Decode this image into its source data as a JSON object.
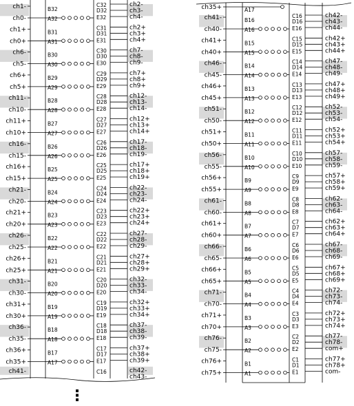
{
  "left_block": {
    "pins": [
      {
        "b": "B32",
        "a": "A32",
        "c": "C32",
        "d": "D32",
        "e": "E32",
        "out": [
          "ch2-",
          "ch3-",
          "ch4-"
        ],
        "in": [
          "ch1-",
          "ch0-"
        ],
        "shaded": true
      },
      {
        "b": "B31",
        "a": "A31",
        "c": "C31",
        "d": "D31",
        "e": "E31",
        "out": [
          "ch2+",
          "ch3+",
          "ch4+"
        ],
        "in": [
          "ch1+",
          "ch0+"
        ],
        "shaded": false
      },
      {
        "b": "B30",
        "a": "A30",
        "c": "C30",
        "d": "D30",
        "e": "E30",
        "out": [
          "ch7-",
          "ch8-",
          "ch9-"
        ],
        "in": [
          "ch6-",
          "ch5-"
        ],
        "shaded": true
      },
      {
        "b": "B29",
        "a": "A29",
        "c": "C29",
        "d": "D29",
        "e": "E29",
        "out": [
          "ch7+",
          "ch8+",
          "ch9+"
        ],
        "in": [
          "ch6+",
          "ch5+"
        ],
        "shaded": false
      },
      {
        "b": "B28",
        "a": "A28",
        "c": "C28",
        "d": "D28",
        "e": "E28",
        "out": [
          "ch12-",
          "ch13-",
          "ch14-"
        ],
        "in": [
          "ch11-",
          "ch10-"
        ],
        "shaded": true
      },
      {
        "b": "B27",
        "a": "A27",
        "c": "C27",
        "d": "D27",
        "e": "E27",
        "out": [
          "ch12+",
          "ch13+",
          "ch14+"
        ],
        "in": [
          "ch11+",
          "ch10+"
        ],
        "shaded": false
      },
      {
        "b": "B26",
        "a": "A26",
        "c": "C26",
        "d": "D26",
        "e": "E26",
        "out": [
          "ch17-",
          "ch18-",
          "ch19-"
        ],
        "in": [
          "ch16-",
          "ch15-"
        ],
        "shaded": true
      },
      {
        "b": "B25",
        "a": "A25",
        "c": "C25",
        "d": "D25",
        "e": "E25",
        "out": [
          "ch17+",
          "ch18+",
          "ch19+"
        ],
        "in": [
          "ch16+",
          "ch15+"
        ],
        "shaded": false
      },
      {
        "b": "B24",
        "a": "A24",
        "c": "C24",
        "d": "D24",
        "e": "E24",
        "out": [
          "ch22-",
          "ch23-",
          "ch24-"
        ],
        "in": [
          "ch21-",
          "ch20-"
        ],
        "shaded": true
      },
      {
        "b": "B23",
        "a": "A23",
        "c": "C23",
        "d": "D23",
        "e": "E23",
        "out": [
          "ch22+",
          "ch23+",
          "ch24+"
        ],
        "in": [
          "ch21+",
          "ch20+"
        ],
        "shaded": false
      },
      {
        "b": "B22",
        "a": "A22",
        "c": "C22",
        "d": "D22",
        "e": "E22",
        "out": [
          "ch27-",
          "ch28-",
          "ch29-"
        ],
        "in": [
          "ch26-",
          "ch25-"
        ],
        "shaded": true
      },
      {
        "b": "B21",
        "a": "A21",
        "c": "C21",
        "d": "D21",
        "e": "E21",
        "out": [
          "ch27+",
          "ch28+",
          "ch29+"
        ],
        "in": [
          "ch26+",
          "ch25+"
        ],
        "shaded": false
      },
      {
        "b": "B20",
        "a": "A20",
        "c": "C20",
        "d": "D20",
        "e": "E20",
        "out": [
          "ch32-",
          "ch33-",
          "ch34-"
        ],
        "in": [
          "ch31-",
          "ch30-"
        ],
        "shaded": true
      },
      {
        "b": "B19",
        "a": "A19",
        "c": "C19",
        "d": "D19",
        "e": "E19",
        "out": [
          "ch32+",
          "ch33+",
          "ch34+"
        ],
        "in": [
          "ch31+",
          "ch30+"
        ],
        "shaded": false
      },
      {
        "b": "B18",
        "a": "A18",
        "c": "C18",
        "d": "D18",
        "e": "E18",
        "out": [
          "ch37-",
          "ch38-",
          "ch39-"
        ],
        "in": [
          "ch36-",
          "ch35-"
        ],
        "shaded": true
      },
      {
        "b": "B17",
        "a": "A17",
        "c": "C17",
        "d": "D17",
        "e": "E17",
        "out": [
          "ch37+",
          "ch38+",
          "ch39+"
        ],
        "in": [
          "ch36+",
          "ch35+"
        ],
        "shaded": false
      }
    ],
    "tail_left": "ch41-",
    "tail_pin": "C16",
    "tail_right": [
      "ch42-",
      "ch43-"
    ],
    "continuation": "⋮"
  },
  "right_block": {
    "head_left": "ch35+",
    "head_pin": "A17",
    "pins": [
      {
        "b": "B16",
        "a": "A16",
        "c": "C16",
        "d": "D16",
        "e": "E16",
        "out": [
          "ch42-",
          "ch43-",
          "ch44-"
        ],
        "in": [
          "ch41-",
          "ch40-"
        ],
        "shaded": true
      },
      {
        "b": "B15",
        "a": "A15",
        "c": "C15",
        "d": "D15",
        "e": "E15",
        "out": [
          "ch42+",
          "ch43+",
          "ch44+"
        ],
        "in": [
          "ch41+",
          "ch40+"
        ],
        "shaded": false
      },
      {
        "b": "B14",
        "a": "A14",
        "c": "C14",
        "d": "D14",
        "e": "E14",
        "out": [
          "ch47-",
          "ch48-",
          "ch49-"
        ],
        "in": [
          "ch46-",
          "ch45-"
        ],
        "shaded": true
      },
      {
        "b": "B13",
        "a": "A13",
        "c": "C13",
        "d": "D13",
        "e": "E13",
        "out": [
          "ch47+",
          "ch48+",
          "ch49+"
        ],
        "in": [
          "ch46+",
          "ch45+"
        ],
        "shaded": false
      },
      {
        "b": "B12",
        "a": "A12",
        "c": "C12",
        "d": "D12",
        "e": "E12",
        "out": [
          "ch52-",
          "ch53-",
          "ch54-"
        ],
        "in": [
          "ch51-",
          "ch50-"
        ],
        "shaded": true
      },
      {
        "b": "B11",
        "a": "A11",
        "c": "C11",
        "d": "D11",
        "e": "E11",
        "out": [
          "ch52+",
          "ch53+",
          "ch54+"
        ],
        "in": [
          "ch51+",
          "ch50+"
        ],
        "shaded": false
      },
      {
        "b": "B10",
        "a": "A10",
        "c": "C10",
        "d": "D10",
        "e": "E10",
        "out": [
          "ch57-",
          "ch58-",
          "ch59-"
        ],
        "in": [
          "ch56-",
          "ch55-"
        ],
        "shaded": true
      },
      {
        "b": "B9",
        "a": "A9",
        "c": "C9",
        "d": "D9",
        "e": "E9",
        "out": [
          "ch57+",
          "ch58+",
          "ch59+"
        ],
        "in": [
          "ch56+",
          "ch55+"
        ],
        "shaded": false
      },
      {
        "b": "B8",
        "a": "A8",
        "c": "C8",
        "d": "D8",
        "e": "E8",
        "out": [
          "ch62-",
          "ch63-",
          "ch64-"
        ],
        "in": [
          "ch61-",
          "ch60-"
        ],
        "shaded": true
      },
      {
        "b": "B7",
        "a": "A7",
        "c": "C7",
        "d": "D7",
        "e": "E7",
        "out": [
          "ch62+",
          "ch63+",
          "ch64+"
        ],
        "in": [
          "ch61+",
          "ch60+"
        ],
        "shaded": false
      },
      {
        "b": "B6",
        "a": "A6",
        "c": "C6",
        "d": "D6",
        "e": "E6",
        "out": [
          "ch67-",
          "ch68-",
          "ch69-"
        ],
        "in": [
          "ch66-",
          "ch65-"
        ],
        "shaded": true
      },
      {
        "b": "B5",
        "a": "A5",
        "c": "C5",
        "d": "D5",
        "e": "E5",
        "out": [
          "ch67+",
          "ch68+",
          "ch69+"
        ],
        "in": [
          "ch66+",
          "ch65+"
        ],
        "shaded": false
      },
      {
        "b": "B4",
        "a": "A4",
        "c": "C4",
        "d": "D4",
        "e": "E4",
        "out": [
          "ch72-",
          "ch73-",
          "ch74-"
        ],
        "in": [
          "ch71-",
          "ch70-"
        ],
        "shaded": true
      },
      {
        "b": "B3",
        "a": "A3",
        "c": "C3",
        "d": "D3",
        "e": "E3",
        "out": [
          "ch72+",
          "ch73+",
          "ch74+"
        ],
        "in": [
          "ch71+",
          "ch70+"
        ],
        "shaded": false
      },
      {
        "b": "B2",
        "a": "A2",
        "c": "C2",
        "d": "D2",
        "e": "E2",
        "out": [
          "ch77-",
          "ch78-",
          "com+"
        ],
        "in": [
          "ch76-",
          "ch75-"
        ],
        "shaded": true
      },
      {
        "b": "B1",
        "a": "A1",
        "c": "C1",
        "d": "D1",
        "e": "E1",
        "out": [
          "ch77+",
          "ch78+",
          "com-"
        ],
        "in": [
          "ch76+",
          "ch75+"
        ],
        "shaded": false
      }
    ]
  }
}
